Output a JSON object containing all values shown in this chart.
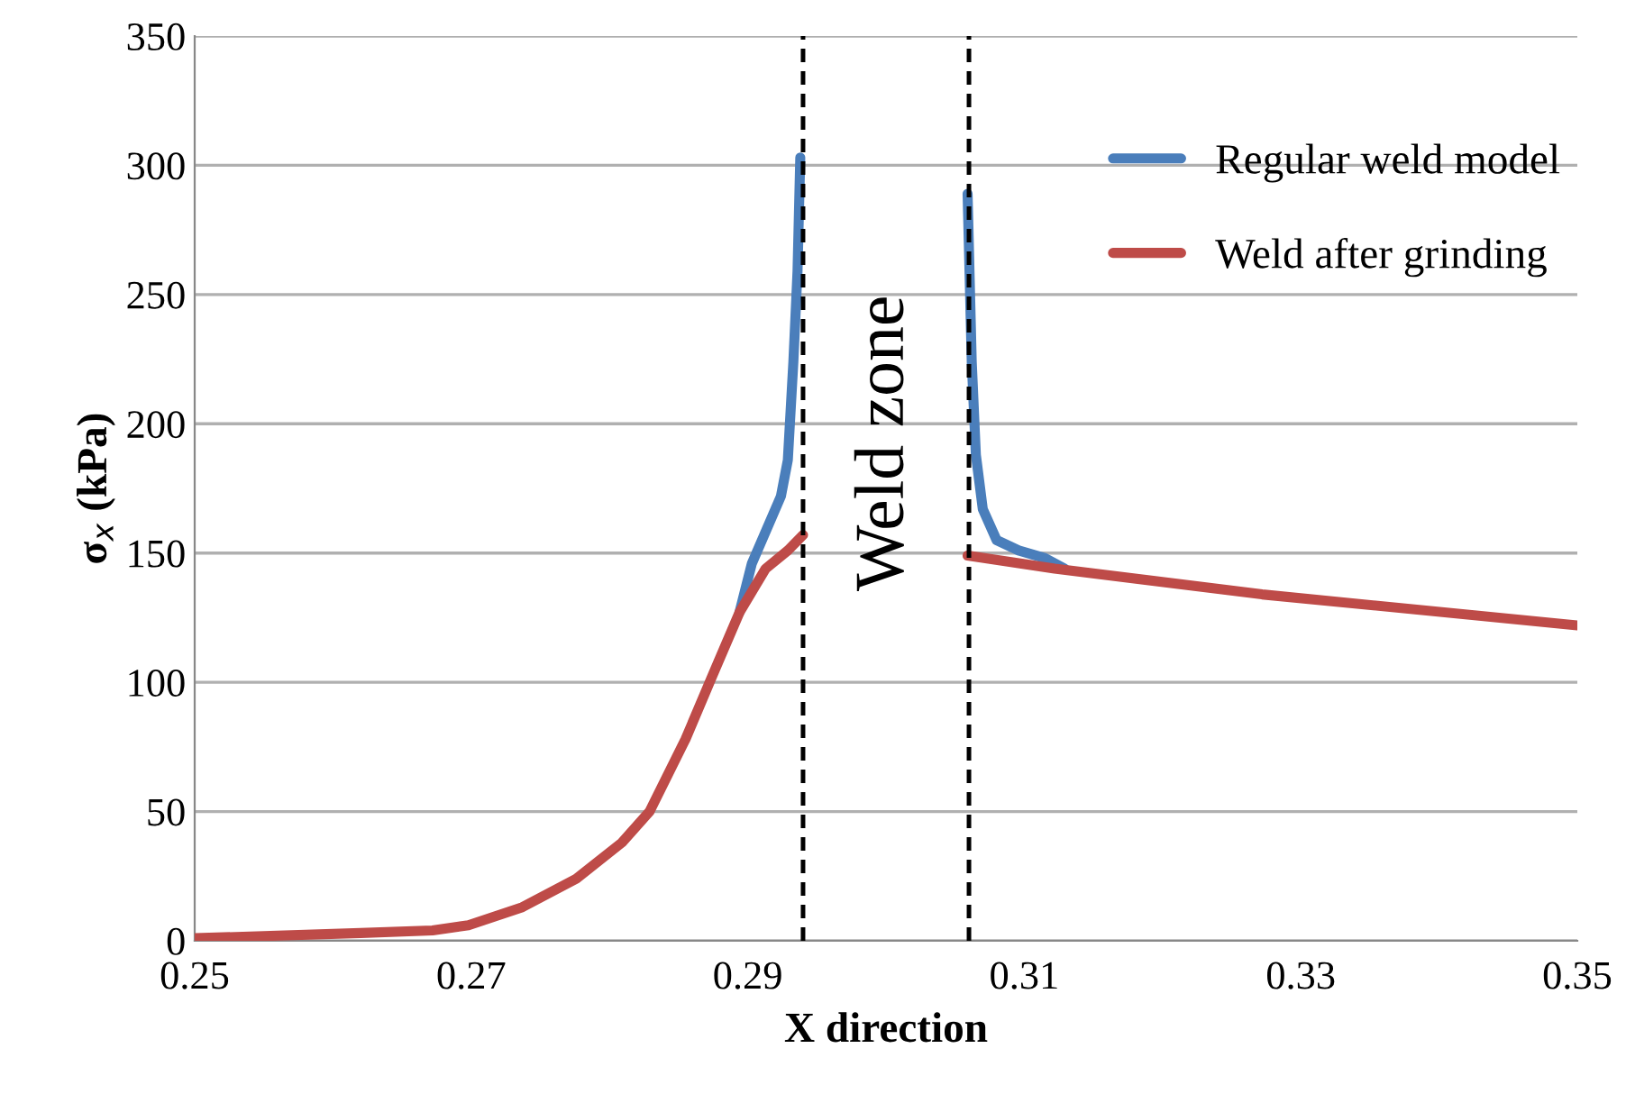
{
  "chart_data": {
    "type": "line",
    "xlabel": "X direction",
    "ylabel": "σ$_{x}$ (kPa)",
    "xlim": [
      0.25,
      0.35
    ],
    "xticks": [
      0.25,
      0.27,
      0.29,
      0.31,
      0.33,
      0.35
    ],
    "ylim": [
      0,
      350
    ],
    "yticks": [
      0,
      50,
      100,
      150,
      200,
      250,
      300,
      350
    ],
    "grid": "y",
    "legend": "right",
    "line_style": "solid",
    "marker": "none",
    "series": [
      {
        "name": "Regular weld model",
        "color": "#4a7ebb",
        "x": [
          0.2894,
          0.2903,
          0.2924,
          0.2929,
          0.2933,
          0.2936,
          0.2938,
          0.3,
          0.3059,
          0.3062,
          0.3065,
          0.307,
          0.308,
          0.3096,
          0.3115,
          0.3129
        ],
        "values": [
          127,
          146,
          172,
          186,
          224,
          259,
          303,
          null,
          289,
          224,
          188,
          167,
          155,
          151,
          148,
          144
        ]
      },
      {
        "name": "Weld after grinding",
        "color": "#be4b48",
        "x": [
          0.25,
          0.262,
          0.2672,
          0.2698,
          0.2737,
          0.2776,
          0.2809,
          0.2829,
          0.2855,
          0.2874,
          0.2894,
          0.2913,
          0.2929,
          0.294,
          0.3,
          0.3059,
          0.3122,
          0.3272,
          0.35
        ],
        "values": [
          1,
          3,
          4,
          6,
          13,
          24,
          38,
          50,
          78,
          102,
          127,
          144,
          151,
          157,
          null,
          149,
          144,
          134,
          122
        ]
      }
    ],
    "ref_lines": [
      {
        "axis": "x",
        "value": 0.294,
        "color": "#000000",
        "line_style": "dashed"
      },
      {
        "axis": "x",
        "value": 0.306,
        "color": "#000000",
        "line_style": "dashed"
      }
    ],
    "annotations": [
      "Weld zone"
    ]
  }
}
